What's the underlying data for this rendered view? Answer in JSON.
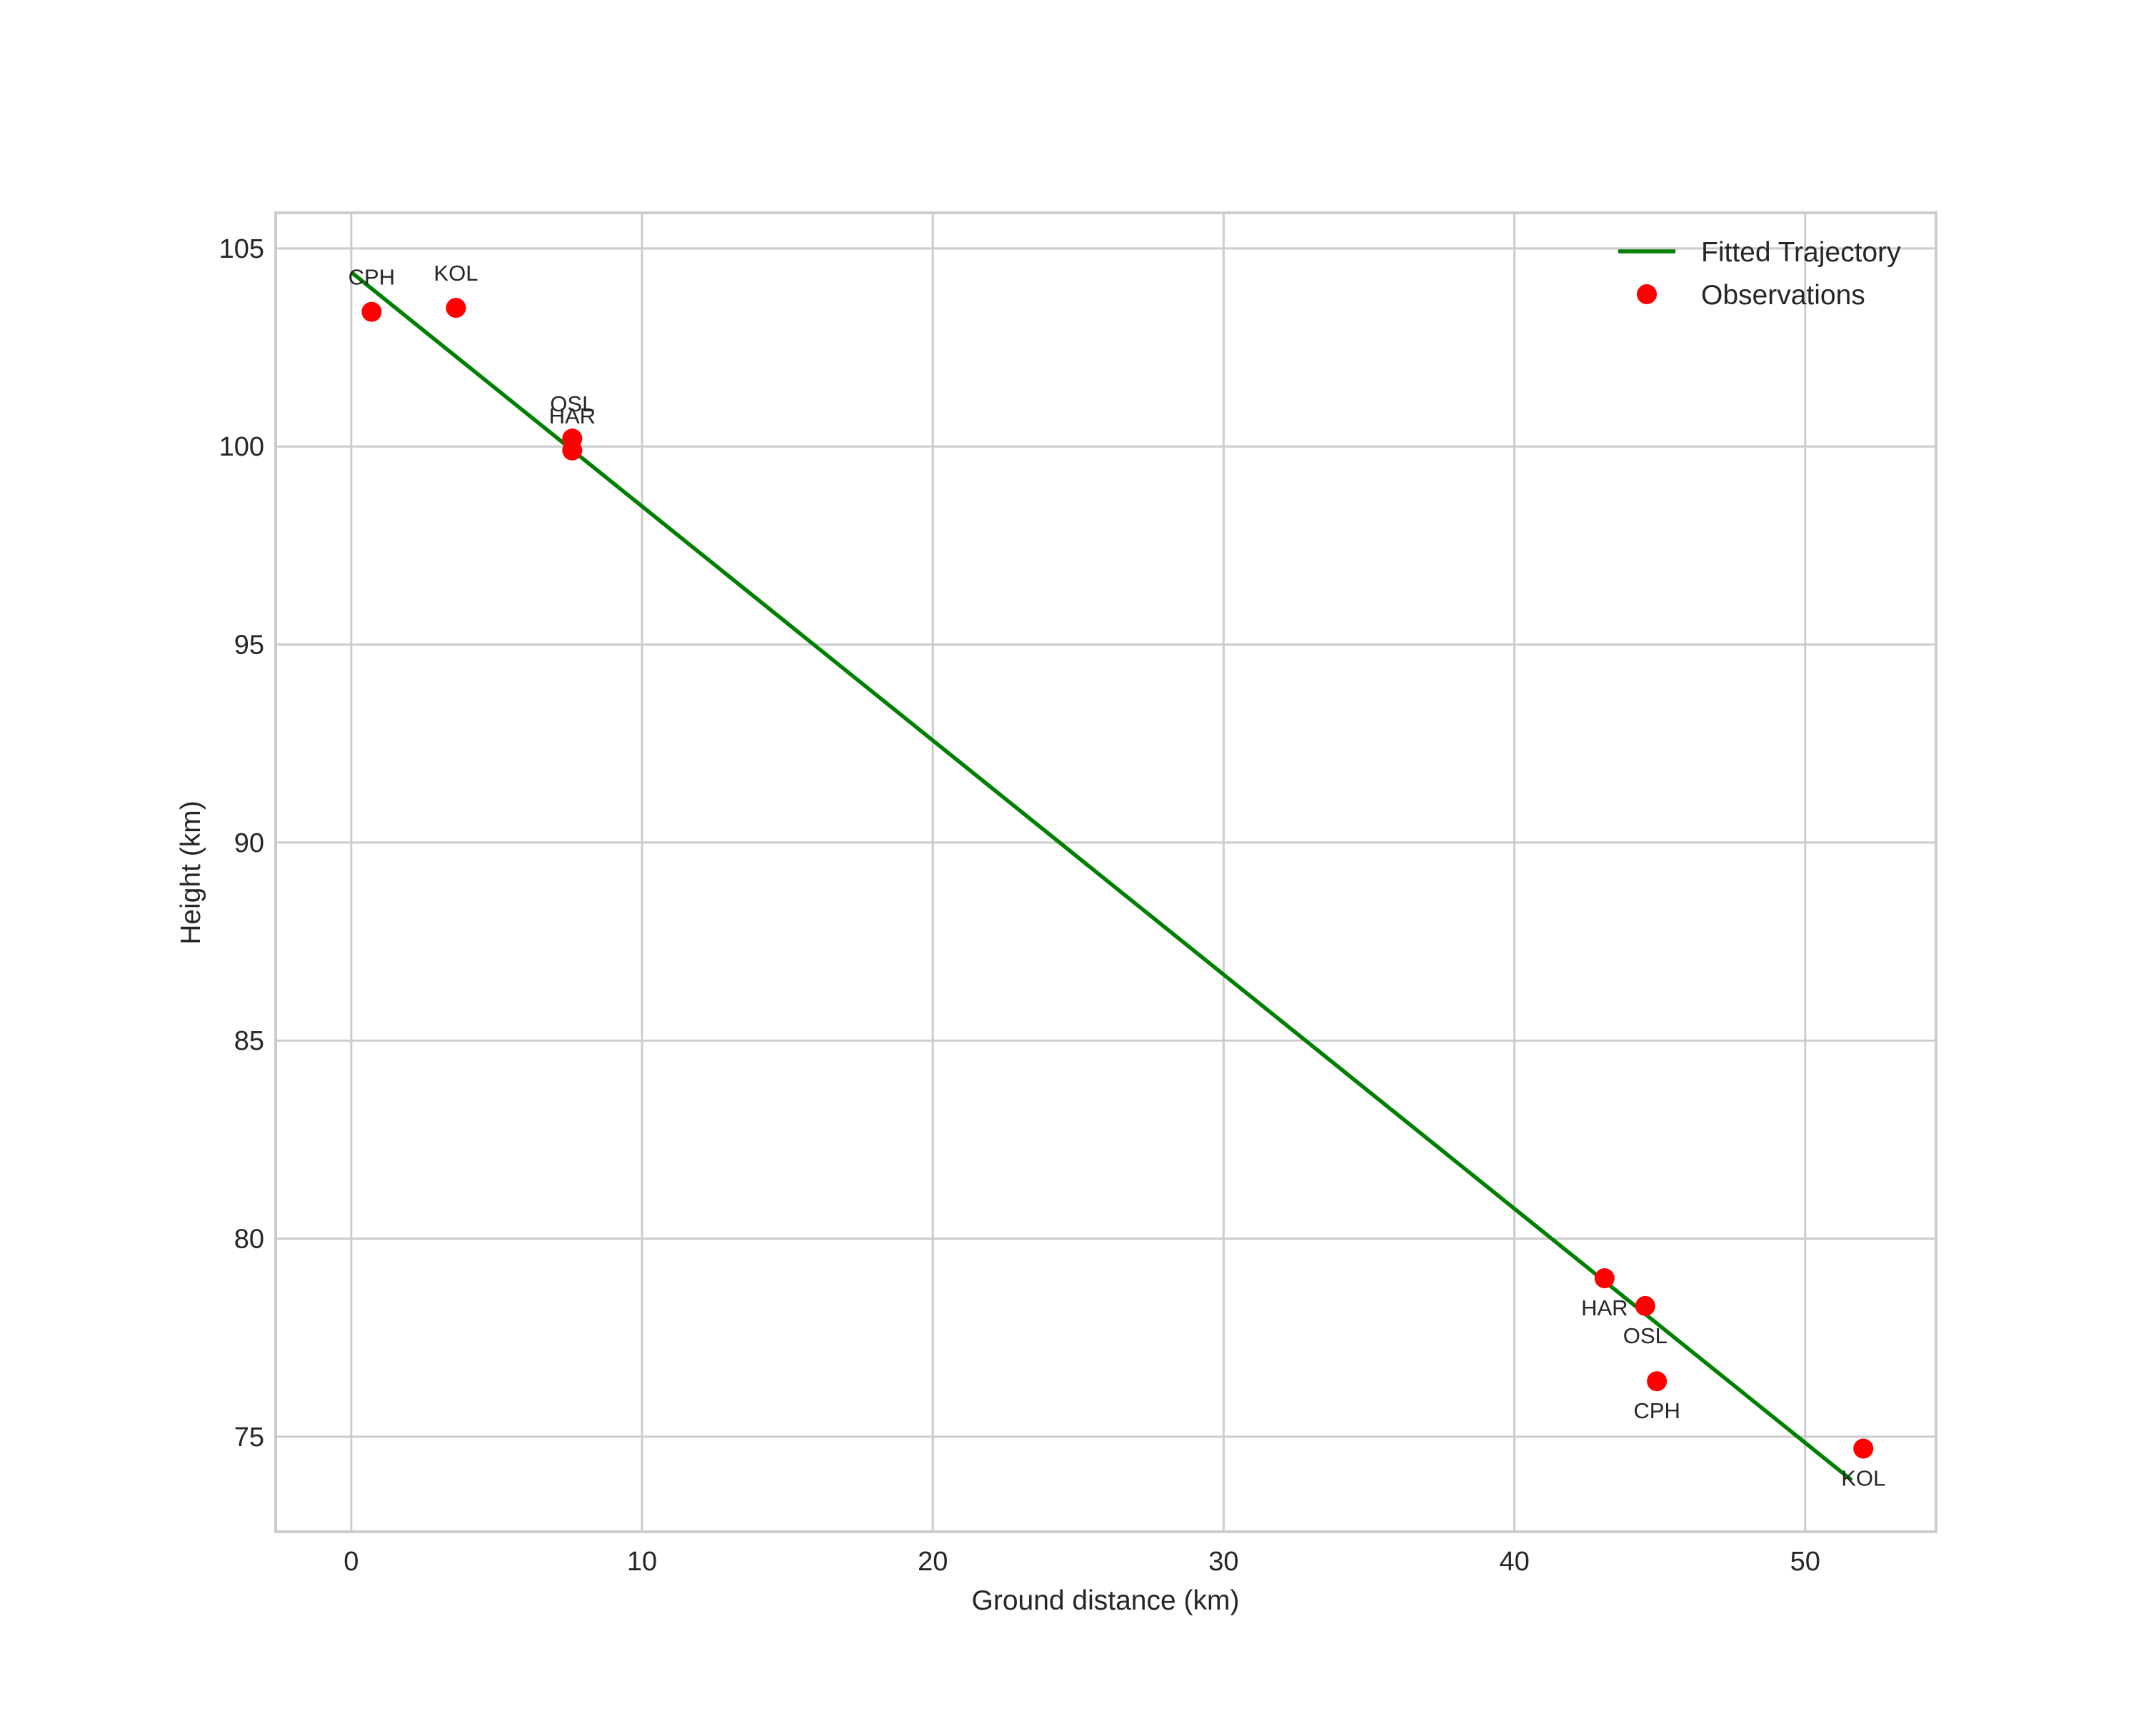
{
  "chart_data": {
    "type": "scatter",
    "title": "",
    "xlabel": "Ground distance (km)",
    "ylabel": "Height (km)",
    "xlim": [
      -2.6,
      54.5
    ],
    "ylim": [
      72.6,
      105.9
    ],
    "xticks": [
      0,
      10,
      20,
      30,
      40,
      50
    ],
    "yticks": [
      75,
      80,
      85,
      90,
      95,
      100,
      105
    ],
    "grid": true,
    "legend_position": "upper right",
    "legend": [
      {
        "label": "Fitted Trajectory",
        "kind": "line",
        "color": "#008000"
      },
      {
        "label": "Observations",
        "kind": "marker",
        "color": "#ff0000"
      }
    ],
    "series": [
      {
        "name": "Fitted Trajectory",
        "kind": "line",
        "color": "#008000",
        "x": [
          0.0,
          51.6
        ],
        "y": [
          104.4,
          73.9
        ]
      },
      {
        "name": "Observations",
        "kind": "scatter",
        "color": "#ff0000",
        "points": [
          {
            "label": "CPH",
            "x": 0.7,
            "y": 103.4,
            "label_pos": "above"
          },
          {
            "label": "KOL",
            "x": 3.6,
            "y": 103.5,
            "label_pos": "above"
          },
          {
            "label": "OSL",
            "x": 7.6,
            "y": 100.2,
            "label_pos": "above"
          },
          {
            "label": "HAR",
            "x": 7.6,
            "y": 99.9,
            "label_pos": "above"
          },
          {
            "label": "HAR",
            "x": 43.1,
            "y": 79.0,
            "label_pos": "below"
          },
          {
            "label": "OSL",
            "x": 44.5,
            "y": 78.3,
            "label_pos": "below"
          },
          {
            "label": "CPH",
            "x": 44.9,
            "y": 76.4,
            "label_pos": "below"
          },
          {
            "label": "KOL",
            "x": 52.0,
            "y": 74.7,
            "label_pos": "below"
          }
        ]
      }
    ]
  },
  "style": {
    "grid_color": "#cccccc",
    "frame_color": "#cccccc",
    "text_color": "#262626",
    "background": "#ffffff"
  }
}
